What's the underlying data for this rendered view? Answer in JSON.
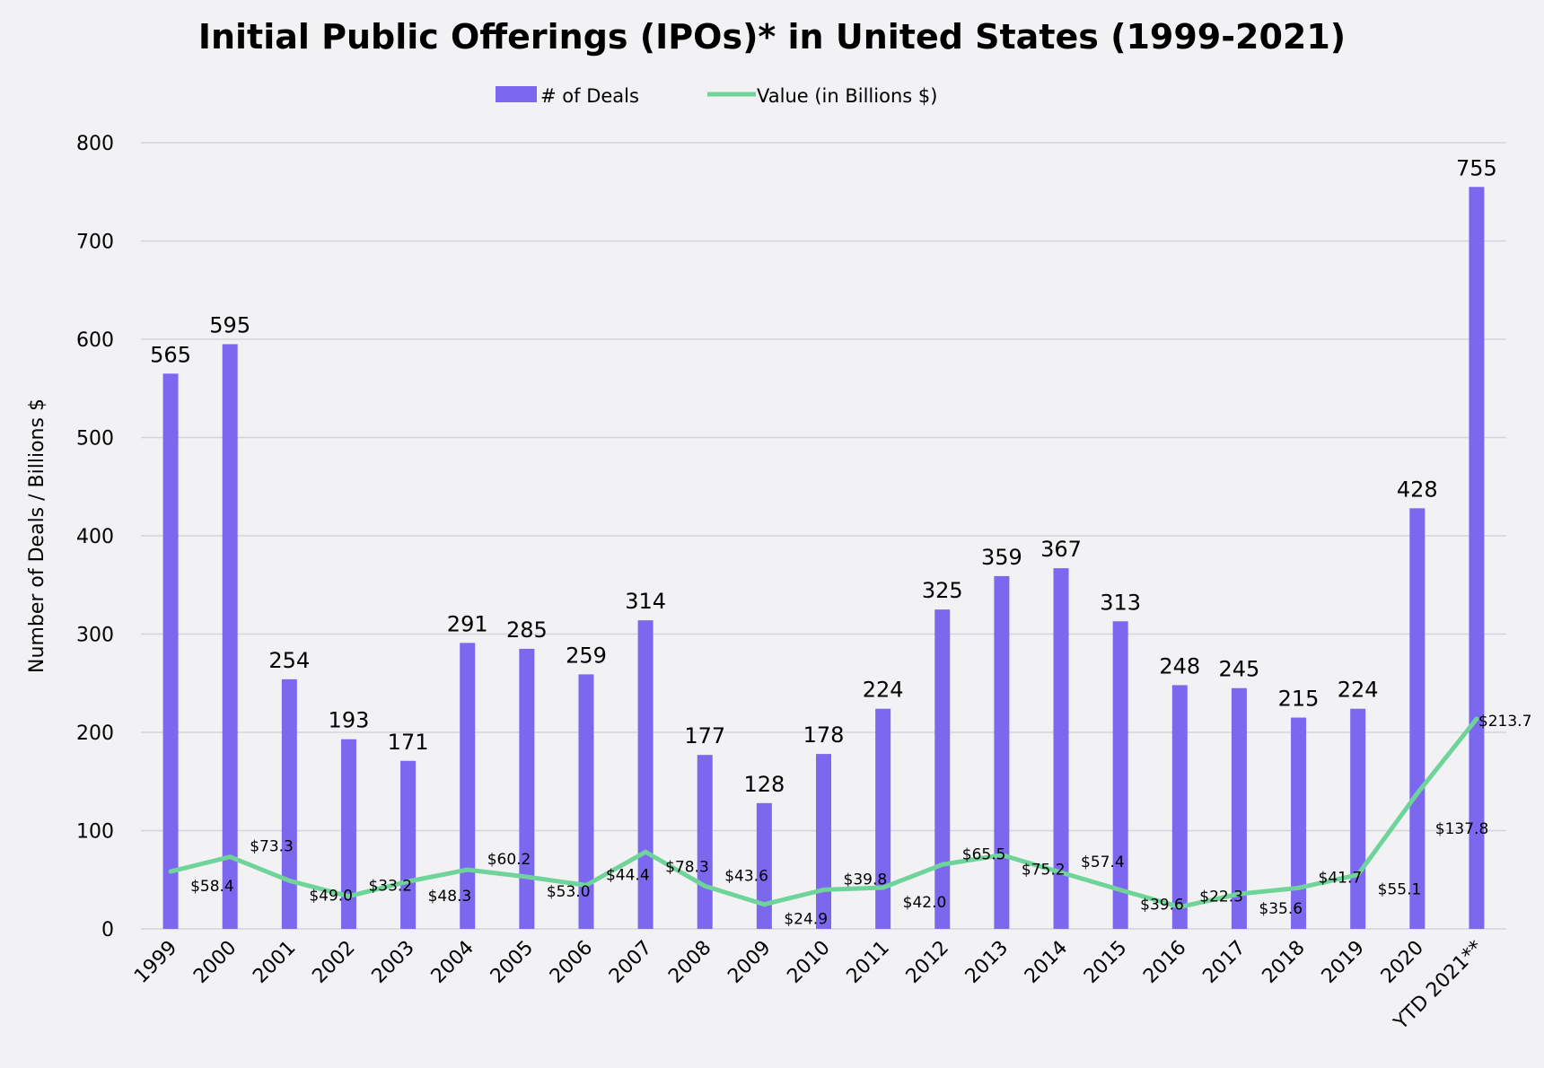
{
  "chart_data": {
    "type": "bar+line",
    "title": "Initial Public Offerings (IPOs)* in United States (1999-2021)",
    "ylabel": "Number of Deals / Billions $",
    "xlabel": "",
    "ylim": [
      0,
      800
    ],
    "yticks": [
      0,
      100,
      200,
      300,
      400,
      500,
      600,
      700,
      800
    ],
    "grid": true,
    "legend": "top",
    "categories": [
      "1999",
      "2000",
      "2001",
      "2002",
      "2003",
      "2004",
      "2005",
      "2006",
      "2007",
      "2008",
      "2009",
      "2010",
      "2011",
      "2012",
      "2013",
      "2014",
      "2015",
      "2016",
      "2017",
      "2018",
      "2019",
      "2020",
      "YTD 2021**"
    ],
    "series": [
      {
        "name": "# of Deals",
        "type": "bar",
        "color": "#7b68ee",
        "values": [
          565,
          595,
          254,
          193,
          171,
          291,
          285,
          259,
          314,
          177,
          128,
          178,
          224,
          325,
          359,
          367,
          313,
          248,
          245,
          215,
          224,
          428,
          755
        ],
        "labels": [
          "565",
          "595",
          "254",
          "193",
          "171",
          "291",
          "285",
          "259",
          "314",
          "177",
          "128",
          "178",
          "224",
          "325",
          "359",
          "367",
          "313",
          "248",
          "245",
          "215",
          "224",
          "428",
          "755"
        ]
      },
      {
        "name": "Value (in Billions $)",
        "type": "line",
        "color": "#6fd49a",
        "values": [
          58.4,
          73.3,
          49.0,
          33.2,
          48.3,
          60.2,
          53.0,
          44.4,
          78.3,
          43.6,
          24.9,
          39.8,
          42.0,
          65.5,
          75.2,
          57.4,
          39.6,
          22.3,
          35.6,
          41.7,
          55.1,
          137.8,
          213.7
        ],
        "labels": [
          "$58.4",
          "$73.3",
          "$49.0",
          "$33.2",
          "$48.3",
          "$60.2",
          "$53.0",
          "$44.4",
          "$78.3",
          "$43.6",
          "$24.9",
          "$39.8",
          "$42.0",
          "$65.5",
          "$75.2",
          "$57.4",
          "$39.6",
          "$22.3",
          "$35.6",
          "$41.7",
          "$55.1",
          "$137.8",
          "$213.7"
        ]
      }
    ]
  }
}
